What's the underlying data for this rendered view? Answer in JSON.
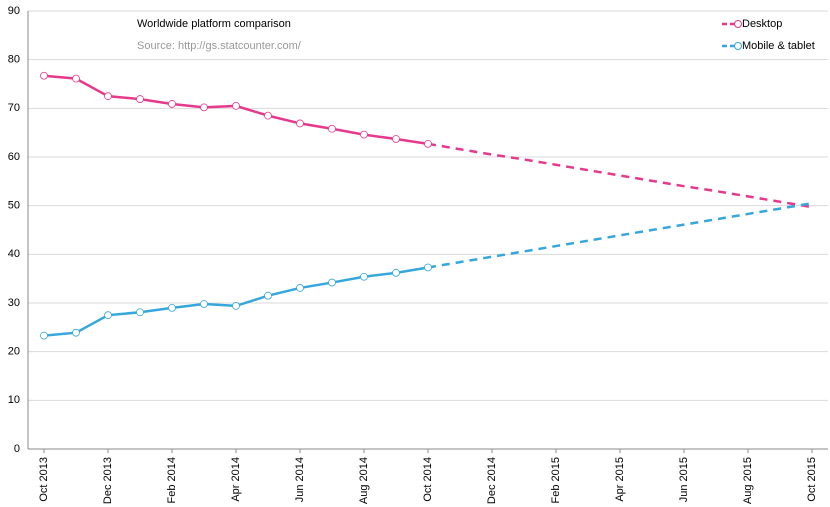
{
  "chart_data": {
    "type": "line",
    "title": "Worldwide platform comparison",
    "subtitle": "Source: http://gs.statcounter.com/",
    "categories": [
      "Oct 2013",
      null,
      "Dec 2013",
      null,
      "Feb 2014",
      null,
      "Apr 2014",
      null,
      "Jun 2014",
      null,
      "Aug 2014",
      null,
      "Oct 2014",
      null,
      "Dec 2014",
      null,
      "Feb 2015",
      null,
      "Apr 2015",
      null,
      "Jun 2015",
      null,
      "Aug 2015",
      null,
      "Oct 2015"
    ],
    "series": [
      {
        "name": "Desktop",
        "color": "#e6398c",
        "values": [
          76.7,
          76.1,
          72.5,
          71.9,
          70.9,
          70.2,
          70.5,
          68.5,
          66.9,
          65.8,
          64.6,
          63.7,
          62.7,
          null,
          null,
          null,
          null,
          null,
          null,
          null,
          null,
          null,
          null,
          null,
          null
        ],
        "projection": [
          null,
          null,
          null,
          null,
          null,
          null,
          null,
          null,
          null,
          null,
          null,
          null,
          62.7,
          61.6,
          60.5,
          59.5,
          58.4,
          57.3,
          56.2,
          55.1,
          54.0,
          53.0,
          51.9,
          50.8,
          49.7
        ]
      },
      {
        "name": "Mobile & tablet",
        "color": "#35a7dc",
        "values": [
          23.3,
          23.9,
          27.5,
          28.1,
          29.0,
          29.8,
          29.4,
          31.5,
          33.1,
          34.2,
          35.4,
          36.2,
          37.3,
          null,
          null,
          null,
          null,
          null,
          null,
          null,
          null,
          null,
          null,
          null,
          null
        ],
        "projection": [
          null,
          null,
          null,
          null,
          null,
          null,
          null,
          null,
          null,
          null,
          null,
          null,
          37.3,
          38.4,
          39.5,
          40.6,
          41.7,
          42.8,
          43.9,
          45.0,
          46.1,
          47.2,
          48.3,
          49.4,
          50.5
        ]
      }
    ],
    "ylim": [
      0,
      90
    ],
    "yticks": [
      0,
      10,
      20,
      30,
      40,
      50,
      60,
      70,
      80,
      90
    ],
    "grid": true,
    "legend": "top-right"
  }
}
